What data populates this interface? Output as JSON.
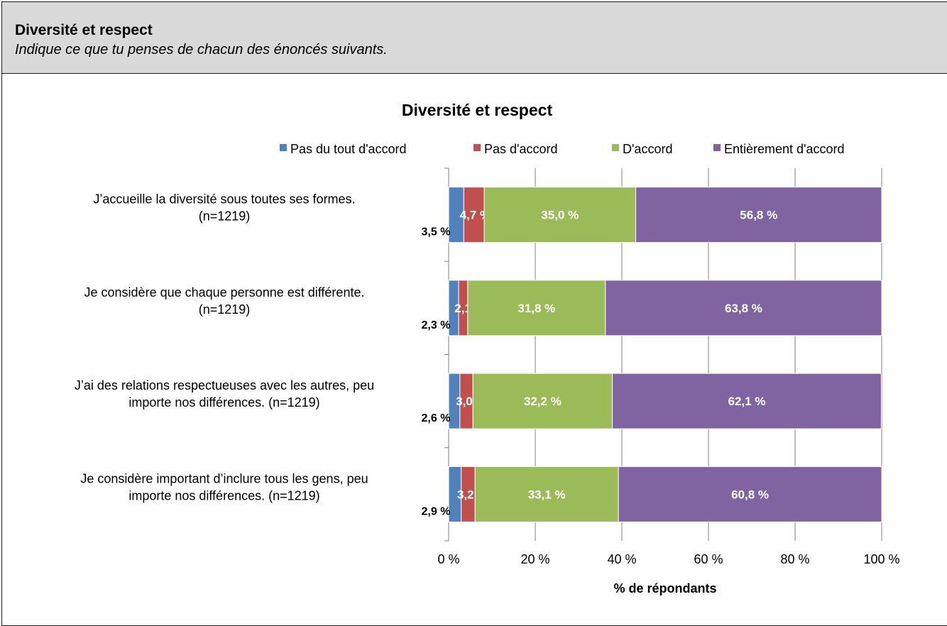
{
  "header": {
    "title": "Diversité et respect",
    "subtitle": "Indique ce que tu penses de chacun des énoncés suivants."
  },
  "chart_data": {
    "type": "bar",
    "orientation": "horizontal",
    "stacked": true,
    "title": "Diversité et respect",
    "xlabel": "% de répondants",
    "ylabel": "",
    "xlim": [
      0,
      100
    ],
    "x_ticks": [
      "0 %",
      "20 %",
      "40 %",
      "60 %",
      "80 %",
      "100 %"
    ],
    "x_tick_values": [
      0,
      20,
      40,
      60,
      80,
      100
    ],
    "grid": "vertical",
    "legend_position": "top",
    "categories": [
      [
        "J’accueille la diversité sous toutes ses formes.",
        "(n=1219)"
      ],
      [
        "Je considère que chaque personne est différente.",
        "(n=1219)"
      ],
      [
        "J’ai des relations respectueuses avec les autres, peu",
        "importe nos différences. (n=1219)"
      ],
      [
        "Je considère important d’inclure tous les gens, peu",
        "importe nos différences. (n=1219)"
      ]
    ],
    "series": [
      {
        "name": "Pas du tout d'accord",
        "color": "#4f81bd",
        "values": [
          3.5,
          2.3,
          2.6,
          2.9
        ],
        "labels": [
          "3,5 %",
          "2,3 %",
          "2,6 %",
          "2,9 %"
        ]
      },
      {
        "name": "Pas d'accord",
        "color": "#c0504d",
        "values": [
          4.7,
          2.1,
          3.0,
          3.2
        ],
        "labels": [
          "4,7 %",
          "2,1 %",
          "3,0 %",
          "3,2 %"
        ]
      },
      {
        "name": "D'accord",
        "color": "#9bbb59",
        "values": [
          35.0,
          31.8,
          32.2,
          33.1
        ],
        "labels": [
          "35,0 %",
          "31,8 %",
          "32,2 %",
          "33,1 %"
        ]
      },
      {
        "name": "Entièrement d'accord",
        "color": "#8064a2",
        "values": [
          56.8,
          63.8,
          62.1,
          60.8
        ],
        "labels": [
          "56,8 %",
          "63,8 %",
          "62,1 %",
          "60,8 %"
        ]
      }
    ]
  }
}
